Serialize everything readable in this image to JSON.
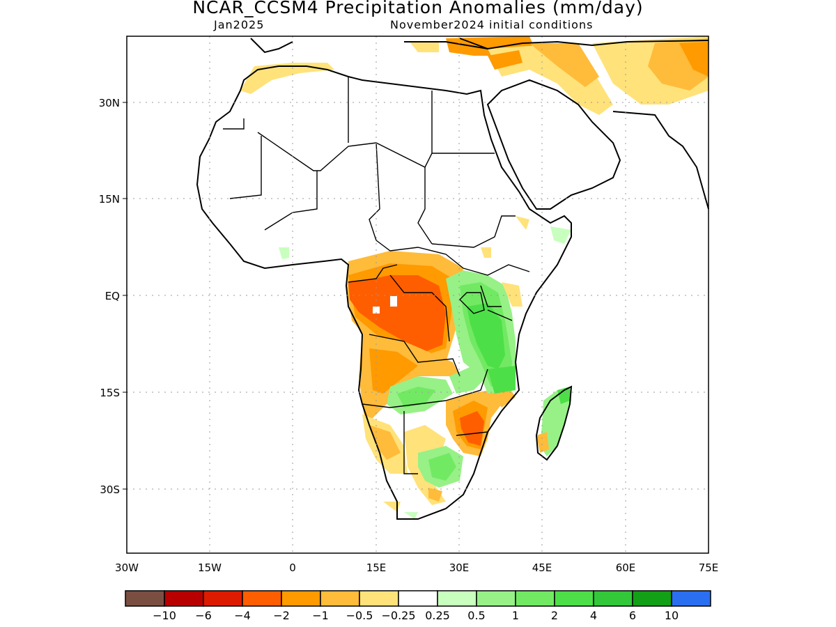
{
  "title": "NCAR_CCSM4 Precipitation Anomalies (mm/day)",
  "subtitle_left": "Jan2025",
  "subtitle_right": "November2024 initial conditions",
  "map": {
    "lat_labels": [
      "30N",
      "15N",
      "EQ",
      "15S",
      "30S"
    ],
    "lon_labels": [
      "30W",
      "15W",
      "0",
      "15E",
      "30E",
      "45E",
      "60E",
      "75E"
    ],
    "grid": "dotted"
  },
  "colorbar": {
    "colors": [
      "#7a4f42",
      "#b80000",
      "#dd1b00",
      "#ff5e00",
      "#ff9a00",
      "#ffbb3a",
      "#ffe27a",
      "#ffffff",
      "#c8ffbe",
      "#97f187",
      "#72e963",
      "#4ddf48",
      "#32c83a",
      "#12a016",
      "#2a6ff0"
    ],
    "labels": [
      "−10",
      "−6",
      "−4",
      "−2",
      "−1",
      "−0.5",
      "−0.25",
      "0.25",
      "0.5",
      "1",
      "2",
      "4",
      "6",
      "10"
    ]
  }
}
